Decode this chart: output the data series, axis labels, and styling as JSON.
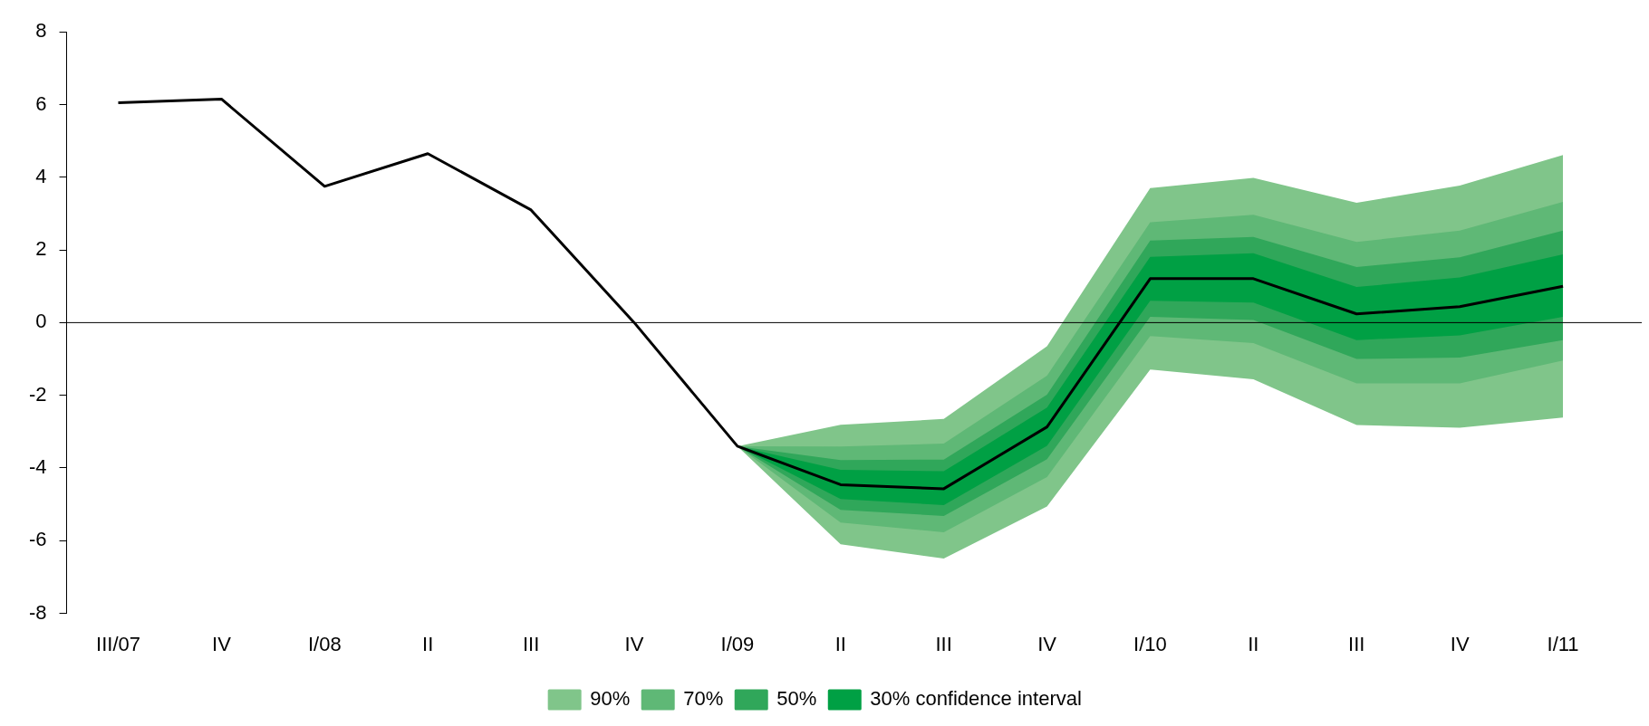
{
  "chart_data": {
    "type": "line",
    "categories": [
      "III/07",
      "IV",
      "I/08",
      "II",
      "III",
      "IV",
      "I/09",
      "II",
      "III",
      "IV",
      "I/10",
      "II",
      "III",
      "IV",
      "I/11"
    ],
    "series": [
      {
        "name": "90%",
        "color": "#80c58a",
        "values": [
          null,
          null,
          null,
          null,
          null,
          null,
          null,
          null,
          null,
          null,
          null,
          null,
          null,
          null,
          null
        ],
        "lower": [
          null,
          null,
          null,
          null,
          null,
          null,
          -3.4,
          -6.1,
          -6.49,
          -5.06,
          -1.29,
          -1.56,
          -2.82,
          -2.89,
          -2.61
        ],
        "upper": [
          null,
          null,
          null,
          null,
          null,
          null,
          -3.4,
          -2.81,
          -2.65,
          -0.65,
          3.7,
          3.98,
          3.3,
          3.77,
          4.61
        ]
      },
      {
        "name": "70%",
        "color": "#5fb876",
        "values": [
          null,
          null,
          null,
          null,
          null,
          null,
          null,
          null,
          null,
          null,
          null,
          null,
          null,
          null,
          null
        ],
        "lower": [
          null,
          null,
          null,
          null,
          null,
          null,
          -3.4,
          -5.5,
          -5.77,
          -4.25,
          -0.37,
          -0.56,
          -1.67,
          -1.67,
          -1.04
        ],
        "upper": [
          null,
          null,
          null,
          null,
          null,
          null,
          -3.4,
          -3.41,
          -3.33,
          -1.46,
          2.76,
          2.97,
          2.22,
          2.53,
          3.32
        ]
      },
      {
        "name": "50%",
        "color": "#30a75a",
        "values": [
          null,
          null,
          null,
          null,
          null,
          null,
          null,
          null,
          null,
          null,
          null,
          null,
          null,
          null,
          null
        ],
        "lower": [
          null,
          null,
          null,
          null,
          null,
          null,
          -3.4,
          -5.15,
          -5.32,
          -3.76,
          0.16,
          0.07,
          -1.0,
          -0.96,
          -0.48
        ],
        "upper": [
          null,
          null,
          null,
          null,
          null,
          null,
          -3.4,
          -3.78,
          -3.77,
          -1.98,
          2.26,
          2.36,
          1.53,
          1.8,
          2.53
        ]
      },
      {
        "name": "30% confidence interval",
        "color": "#00a044",
        "values": [
          null,
          null,
          null,
          null,
          null,
          null,
          null,
          null,
          null,
          null,
          null,
          null,
          null,
          null,
          null
        ],
        "lower": [
          null,
          null,
          null,
          null,
          null,
          null,
          -3.4,
          -4.85,
          -5.02,
          -3.39,
          0.6,
          0.55,
          -0.48,
          -0.35,
          0.16
        ],
        "upper": [
          null,
          null,
          null,
          null,
          null,
          null,
          -3.4,
          -4.05,
          -4.09,
          -2.34,
          1.81,
          1.91,
          0.98,
          1.24,
          1.88
        ]
      },
      {
        "type": "line",
        "color": "#000000",
        "values": [
          6.05,
          6.15,
          3.75,
          4.65,
          3.1,
          0,
          -3.4,
          -4.46,
          -4.57,
          -2.87,
          1.21,
          1.21,
          0.24,
          0.44,
          1.0
        ]
      }
    ],
    "ylim": [
      -8,
      8
    ],
    "yticks": [
      -8,
      -6,
      -4,
      -2,
      0,
      2,
      4,
      6,
      8
    ],
    "ref_lines": [
      {
        "axis": "y",
        "value": 0,
        "color": "#000000"
      }
    ],
    "grid": false,
    "legend": "bottom",
    "marker": "none",
    "line_style": "solid"
  }
}
